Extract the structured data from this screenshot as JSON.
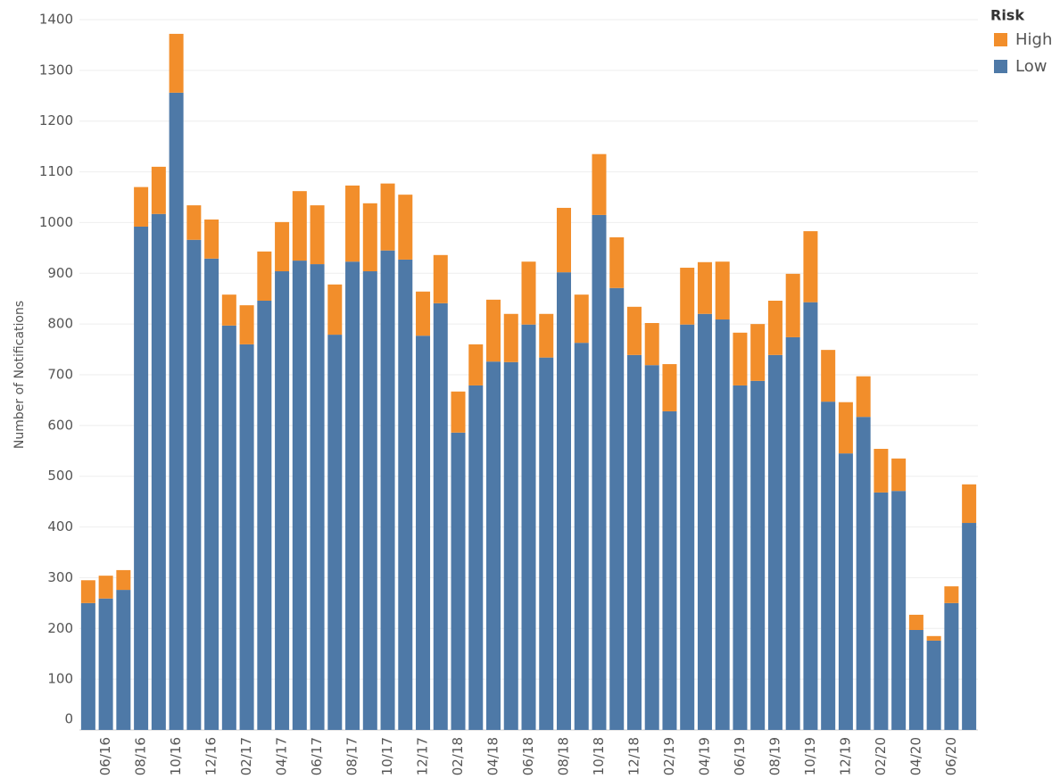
{
  "chart_data": {
    "type": "stacked-bar",
    "y_label": "Number of Notifications",
    "legend_title": "Risk",
    "legend": "right",
    "grid": true,
    "categories": [
      null,
      "06/16",
      null,
      "08/16",
      null,
      "10/16",
      null,
      "12/16",
      null,
      "02/17",
      null,
      "04/17",
      null,
      "06/17",
      null,
      "08/17",
      null,
      "10/17",
      null,
      "12/17",
      null,
      "02/18",
      null,
      "04/18",
      null,
      "06/18",
      null,
      "08/18",
      null,
      "10/18",
      null,
      "12/18",
      null,
      "02/19",
      null,
      "04/19",
      null,
      "06/19",
      null,
      "08/19",
      null,
      "10/19",
      null,
      "12/19",
      null,
      "02/20",
      null,
      "04/20",
      null,
      "06/20",
      null
    ],
    "series": [
      {
        "name": "High",
        "color": "#f28e2b",
        "values": [
          45,
          45,
          39,
          78,
          93,
          116,
          68,
          77,
          61,
          77,
          97,
          97,
          137,
          116,
          99,
          150,
          134,
          132,
          128,
          87,
          95,
          81,
          81,
          122,
          95,
          124,
          86,
          127,
          95,
          120,
          100,
          95,
          83,
          93,
          112,
          102,
          114,
          104,
          112,
          107,
          125,
          140,
          102,
          101,
          80,
          86,
          64,
          30,
          9,
          33,
          76
        ]
      },
      {
        "name": "Low",
        "color": "#4e79a7",
        "values": [
          250,
          259,
          276,
          992,
          1017,
          1256,
          966,
          929,
          797,
          760,
          846,
          904,
          925,
          918,
          779,
          923,
          904,
          945,
          927,
          777,
          841,
          586,
          679,
          726,
          725,
          799,
          734,
          902,
          763,
          1015,
          871,
          739,
          719,
          628,
          799,
          820,
          809,
          679,
          688,
          739,
          774,
          843,
          647,
          545,
          617,
          468,
          471,
          197,
          176,
          250,
          408
        ]
      }
    ],
    "ylim": [
      0,
      1400
    ],
    "yticks": [
      0,
      100,
      200,
      300,
      400,
      500,
      600,
      700,
      800,
      900,
      1000,
      1100,
      1200,
      1300,
      1400
    ]
  }
}
